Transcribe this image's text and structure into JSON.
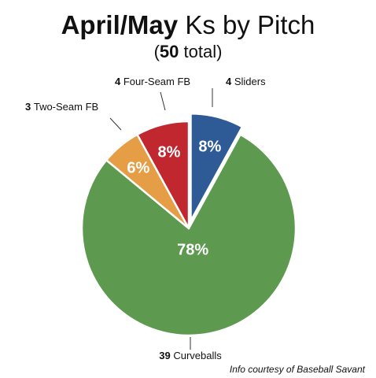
{
  "header": {
    "title_bold": "April/May",
    "title_rest": "Ks by Pitch",
    "subtitle_open": "(",
    "subtitle_bold": "50",
    "subtitle_rest": " total)"
  },
  "credit": "Info courtesy of Baseball Savant",
  "chart_data": {
    "type": "pie",
    "title": "April/May Ks by Pitch",
    "subtitle": "(50 total)",
    "total": 50,
    "slices": [
      {
        "name": "Sliders",
        "count": 4,
        "percent_label": "8%",
        "color": "#2e5a96",
        "exploded": true,
        "count_label": "4",
        "name_label": "Sliders"
      },
      {
        "name": "Curveballs",
        "count": 39,
        "percent_label": "78%",
        "color": "#5d9a4f",
        "exploded": false,
        "count_label": "39",
        "name_label": "Curveballs"
      },
      {
        "name": "Two-Seam FB",
        "count": 3,
        "percent_label": "6%",
        "color": "#e59d46",
        "exploded": false,
        "count_label": "3",
        "name_label": "Two-Seam FB"
      },
      {
        "name": "Four-Seam FB",
        "count": 4,
        "percent_label": "8%",
        "color": "#c1272f",
        "exploded": false,
        "count_label": "4",
        "name_label": "Four-Seam FB"
      }
    ]
  }
}
